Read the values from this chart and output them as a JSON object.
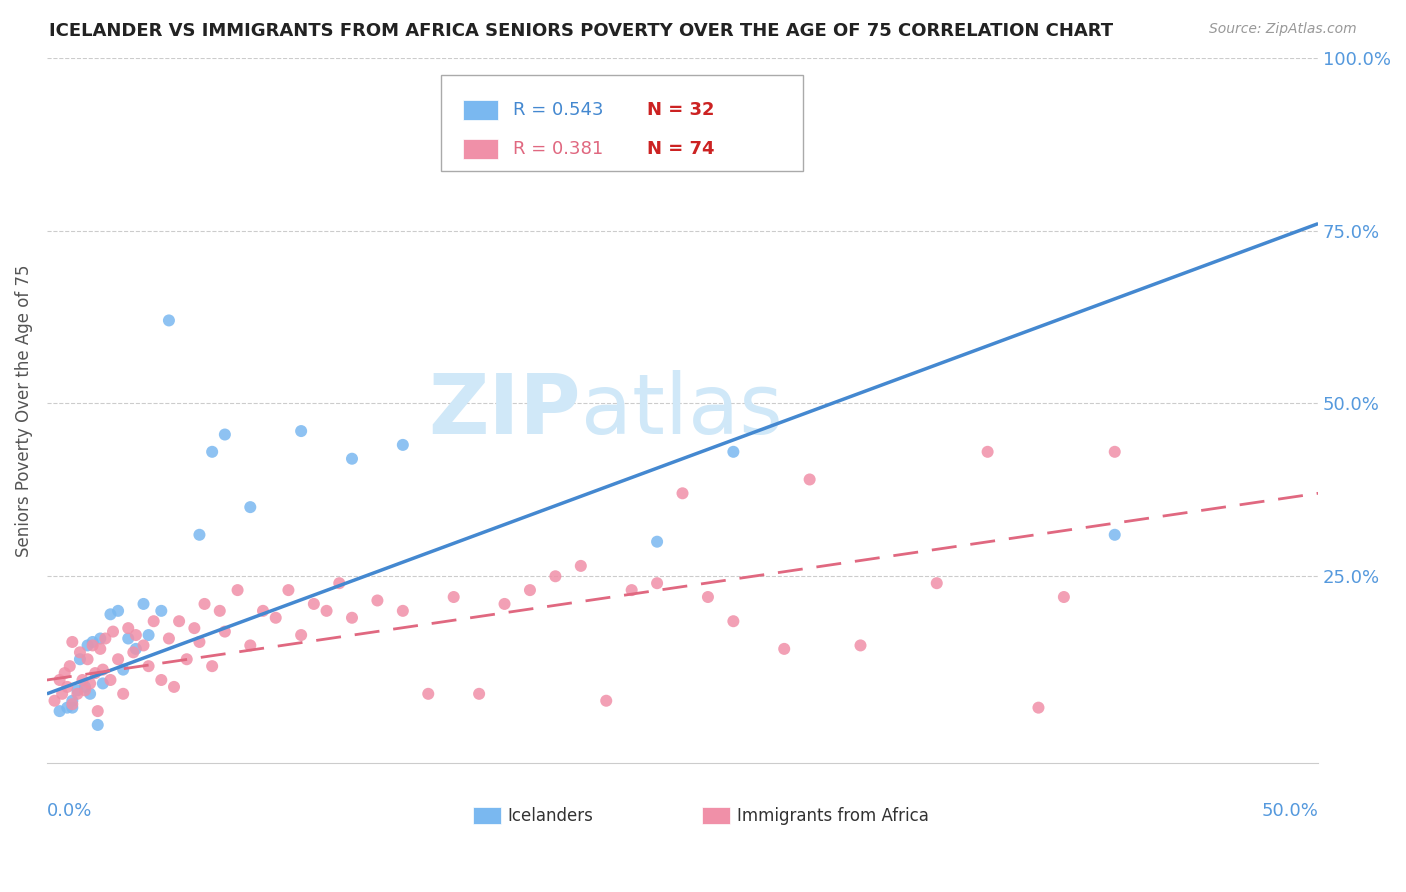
{
  "title": "ICELANDER VS IMMIGRANTS FROM AFRICA SENIORS POVERTY OVER THE AGE OF 75 CORRELATION CHART",
  "source": "Source: ZipAtlas.com",
  "ylabel": "Seniors Poverty Over the Age of 75",
  "xlim": [
    0.0,
    0.5
  ],
  "ylim": [
    -0.02,
    1.0
  ],
  "ytick_vals": [
    0.0,
    0.25,
    0.5,
    0.75,
    1.0
  ],
  "ytick_labels": [
    "",
    "25.0%",
    "50.0%",
    "75.0%",
    "100.0%"
  ],
  "xtick_left": "0.0%",
  "xtick_right": "50.0%",
  "legend_r1": "R = 0.543",
  "legend_n1": "N = 32",
  "legend_r2": "R = 0.381",
  "legend_n2": "N = 74",
  "label_icelanders": "Icelanders",
  "label_africa": "Immigrants from Africa",
  "color_blue_scatter": "#7ab8f0",
  "color_pink_scatter": "#f090a8",
  "color_blue_line": "#4488d0",
  "color_pink_line": "#e06880",
  "color_axis_right": "#5599dd",
  "color_watermark": "#d0e8f8",
  "color_title": "#222222",
  "color_source": "#999999",
  "color_grid": "#cccccc",
  "watermark_zip": "ZIP",
  "watermark_atlas": "atlas",
  "blue_line_x0": 0.0,
  "blue_line_y0": 0.08,
  "blue_line_x1": 0.5,
  "blue_line_y1": 0.76,
  "pink_line_x0": 0.0,
  "pink_line_y0": 0.1,
  "pink_line_x1": 0.5,
  "pink_line_y1": 0.37,
  "icelanders_x": [
    0.005,
    0.008,
    0.01,
    0.01,
    0.012,
    0.013,
    0.015,
    0.016,
    0.017,
    0.018,
    0.02,
    0.021,
    0.022,
    0.025,
    0.028,
    0.03,
    0.032,
    0.035,
    0.038,
    0.04,
    0.045,
    0.048,
    0.06,
    0.065,
    0.07,
    0.08,
    0.1,
    0.12,
    0.14,
    0.24,
    0.27,
    0.42
  ],
  "icelanders_y": [
    0.055,
    0.06,
    0.06,
    0.07,
    0.085,
    0.13,
    0.09,
    0.15,
    0.08,
    0.155,
    0.035,
    0.16,
    0.095,
    0.195,
    0.2,
    0.115,
    0.16,
    0.145,
    0.21,
    0.165,
    0.2,
    0.62,
    0.31,
    0.43,
    0.455,
    0.35,
    0.46,
    0.42,
    0.44,
    0.3,
    0.43,
    0.31
  ],
  "africa_x": [
    0.003,
    0.005,
    0.006,
    0.007,
    0.008,
    0.009,
    0.01,
    0.01,
    0.012,
    0.013,
    0.014,
    0.015,
    0.016,
    0.017,
    0.018,
    0.019,
    0.02,
    0.021,
    0.022,
    0.023,
    0.025,
    0.026,
    0.028,
    0.03,
    0.032,
    0.034,
    0.035,
    0.038,
    0.04,
    0.042,
    0.045,
    0.048,
    0.05,
    0.052,
    0.055,
    0.058,
    0.06,
    0.062,
    0.065,
    0.068,
    0.07,
    0.075,
    0.08,
    0.085,
    0.09,
    0.095,
    0.1,
    0.105,
    0.11,
    0.115,
    0.12,
    0.13,
    0.14,
    0.15,
    0.16,
    0.17,
    0.18,
    0.19,
    0.2,
    0.21,
    0.22,
    0.23,
    0.24,
    0.25,
    0.26,
    0.27,
    0.29,
    0.3,
    0.32,
    0.35,
    0.37,
    0.39,
    0.4,
    0.42
  ],
  "africa_y": [
    0.07,
    0.1,
    0.08,
    0.11,
    0.09,
    0.12,
    0.065,
    0.155,
    0.08,
    0.14,
    0.1,
    0.085,
    0.13,
    0.095,
    0.15,
    0.11,
    0.055,
    0.145,
    0.115,
    0.16,
    0.1,
    0.17,
    0.13,
    0.08,
    0.175,
    0.14,
    0.165,
    0.15,
    0.12,
    0.185,
    0.1,
    0.16,
    0.09,
    0.185,
    0.13,
    0.175,
    0.155,
    0.21,
    0.12,
    0.2,
    0.17,
    0.23,
    0.15,
    0.2,
    0.19,
    0.23,
    0.165,
    0.21,
    0.2,
    0.24,
    0.19,
    0.215,
    0.2,
    0.08,
    0.22,
    0.08,
    0.21,
    0.23,
    0.25,
    0.265,
    0.07,
    0.23,
    0.24,
    0.37,
    0.22,
    0.185,
    0.145,
    0.39,
    0.15,
    0.24,
    0.43,
    0.06,
    0.22,
    0.43
  ]
}
